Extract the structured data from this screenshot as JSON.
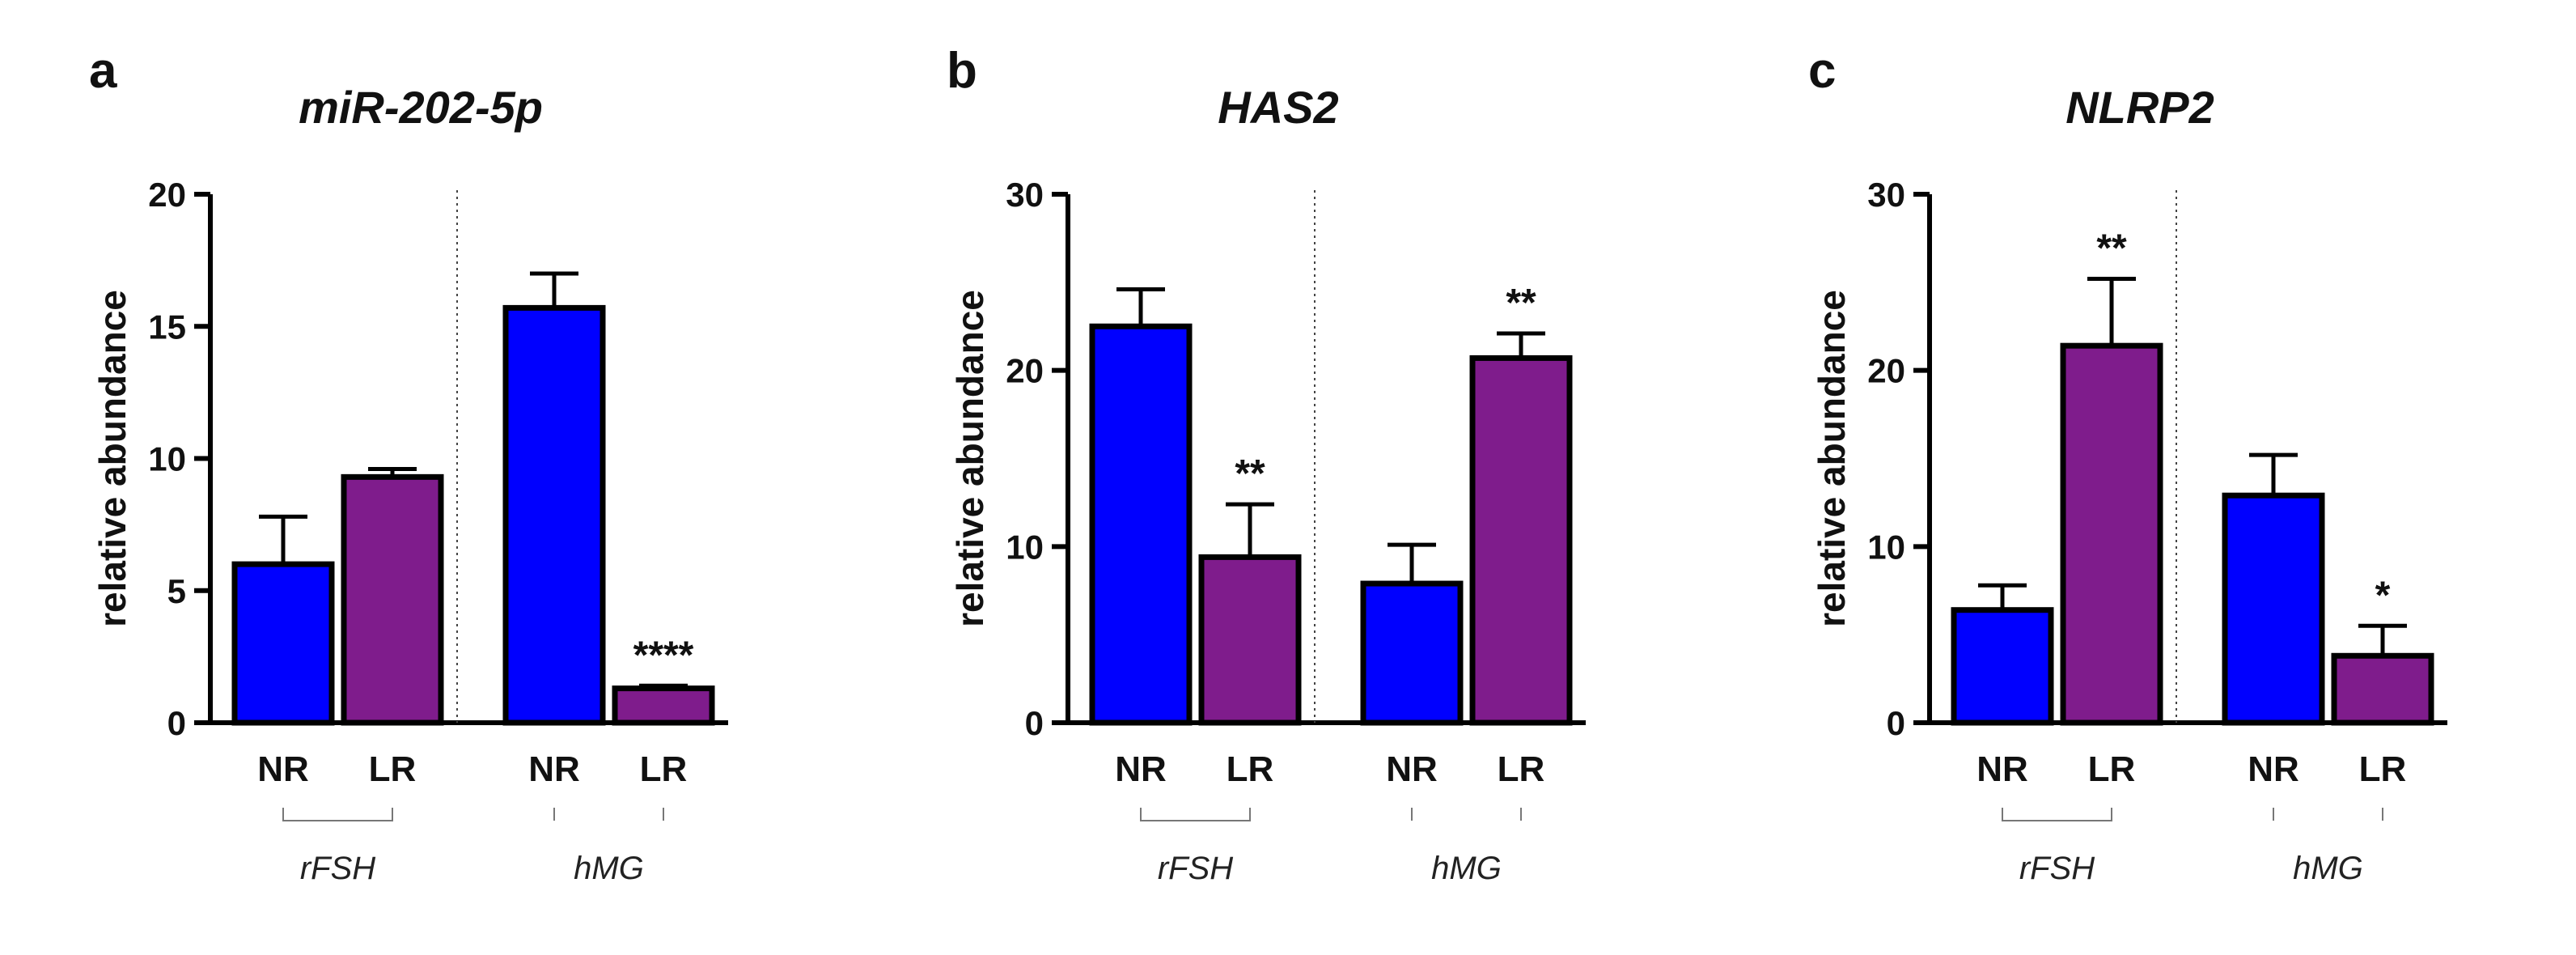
{
  "chart_data": [
    {
      "type": "bar",
      "panel": "a",
      "title": "miR-202-5p",
      "ylabel": "relative abundance",
      "xlabel": "",
      "ylim": [
        0,
        20
      ],
      "yticks": [
        0,
        5,
        10,
        15,
        20
      ],
      "categories": [
        "NR",
        "LR",
        "NR",
        "LR"
      ],
      "groups": [
        "rFSH",
        "hMG"
      ],
      "values": [
        6.0,
        9.3,
        15.7,
        1.3
      ],
      "errors": [
        1.8,
        0.3,
        1.3,
        0.1
      ],
      "colors": [
        "#0000ff",
        "#7f1c8c",
        "#0000ff",
        "#7f1c8c"
      ],
      "significance": [
        "",
        "",
        "",
        "****"
      ]
    },
    {
      "type": "bar",
      "panel": "b",
      "title": "HAS2",
      "ylabel": "relative abundance",
      "xlabel": "",
      "ylim": [
        0,
        30
      ],
      "yticks": [
        0,
        10,
        20,
        30
      ],
      "categories": [
        "NR",
        "LR",
        "NR",
        "LR"
      ],
      "groups": [
        "rFSH",
        "hMG"
      ],
      "values": [
        22.5,
        9.4,
        7.9,
        20.7
      ],
      "errors": [
        2.1,
        3.0,
        2.2,
        1.4
      ],
      "colors": [
        "#0000ff",
        "#7f1c8c",
        "#0000ff",
        "#7f1c8c"
      ],
      "significance": [
        "",
        "**",
        "",
        "**"
      ]
    },
    {
      "type": "bar",
      "panel": "c",
      "title": "NLRP2",
      "ylabel": "relative abundance",
      "xlabel": "",
      "ylim": [
        0,
        30
      ],
      "yticks": [
        0,
        10,
        20,
        30
      ],
      "categories": [
        "NR",
        "LR",
        "NR",
        "LR"
      ],
      "groups": [
        "rFSH",
        "hMG"
      ],
      "values": [
        6.4,
        21.4,
        12.9,
        3.8
      ],
      "errors": [
        1.4,
        3.8,
        2.3,
        1.7
      ],
      "colors": [
        "#0000ff",
        "#7f1c8c",
        "#0000ff",
        "#7f1c8c"
      ],
      "significance": [
        "",
        "**",
        "",
        "*"
      ]
    }
  ]
}
